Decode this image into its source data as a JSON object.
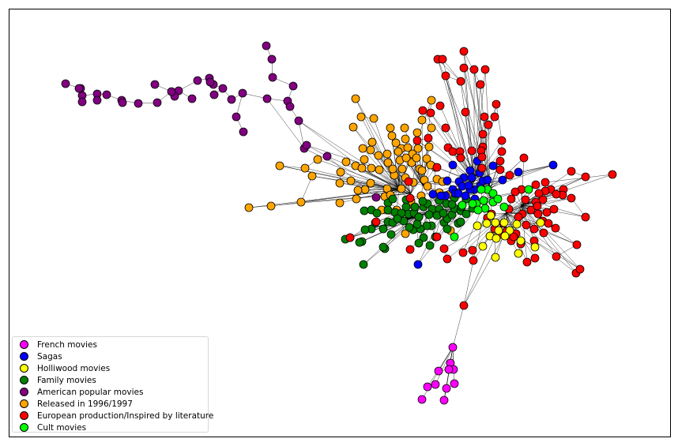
{
  "chart_data": {
    "type": "network",
    "title": "",
    "legend_position": "bottom-left",
    "communities": [
      {
        "key": "french",
        "name": "French movies",
        "color": "#ff00ff"
      },
      {
        "key": "sagas",
        "name": "Sagas",
        "color": "#0000ff"
      },
      {
        "key": "hollywood",
        "name": "Holliwood movies",
        "color": "#ffff00"
      },
      {
        "key": "family",
        "name": "Family movies",
        "color": "#008000"
      },
      {
        "key": "american",
        "name": "American popular movies",
        "color": "#800080"
      },
      {
        "key": "released",
        "name": "Released in 1996/1997",
        "color": "#ffa500"
      },
      {
        "key": "european",
        "name": "European production/Inspired by literature",
        "color": "#ff0000"
      },
      {
        "key": "cult",
        "name": "Cult movies",
        "color": "#00ff00"
      }
    ]
  }
}
